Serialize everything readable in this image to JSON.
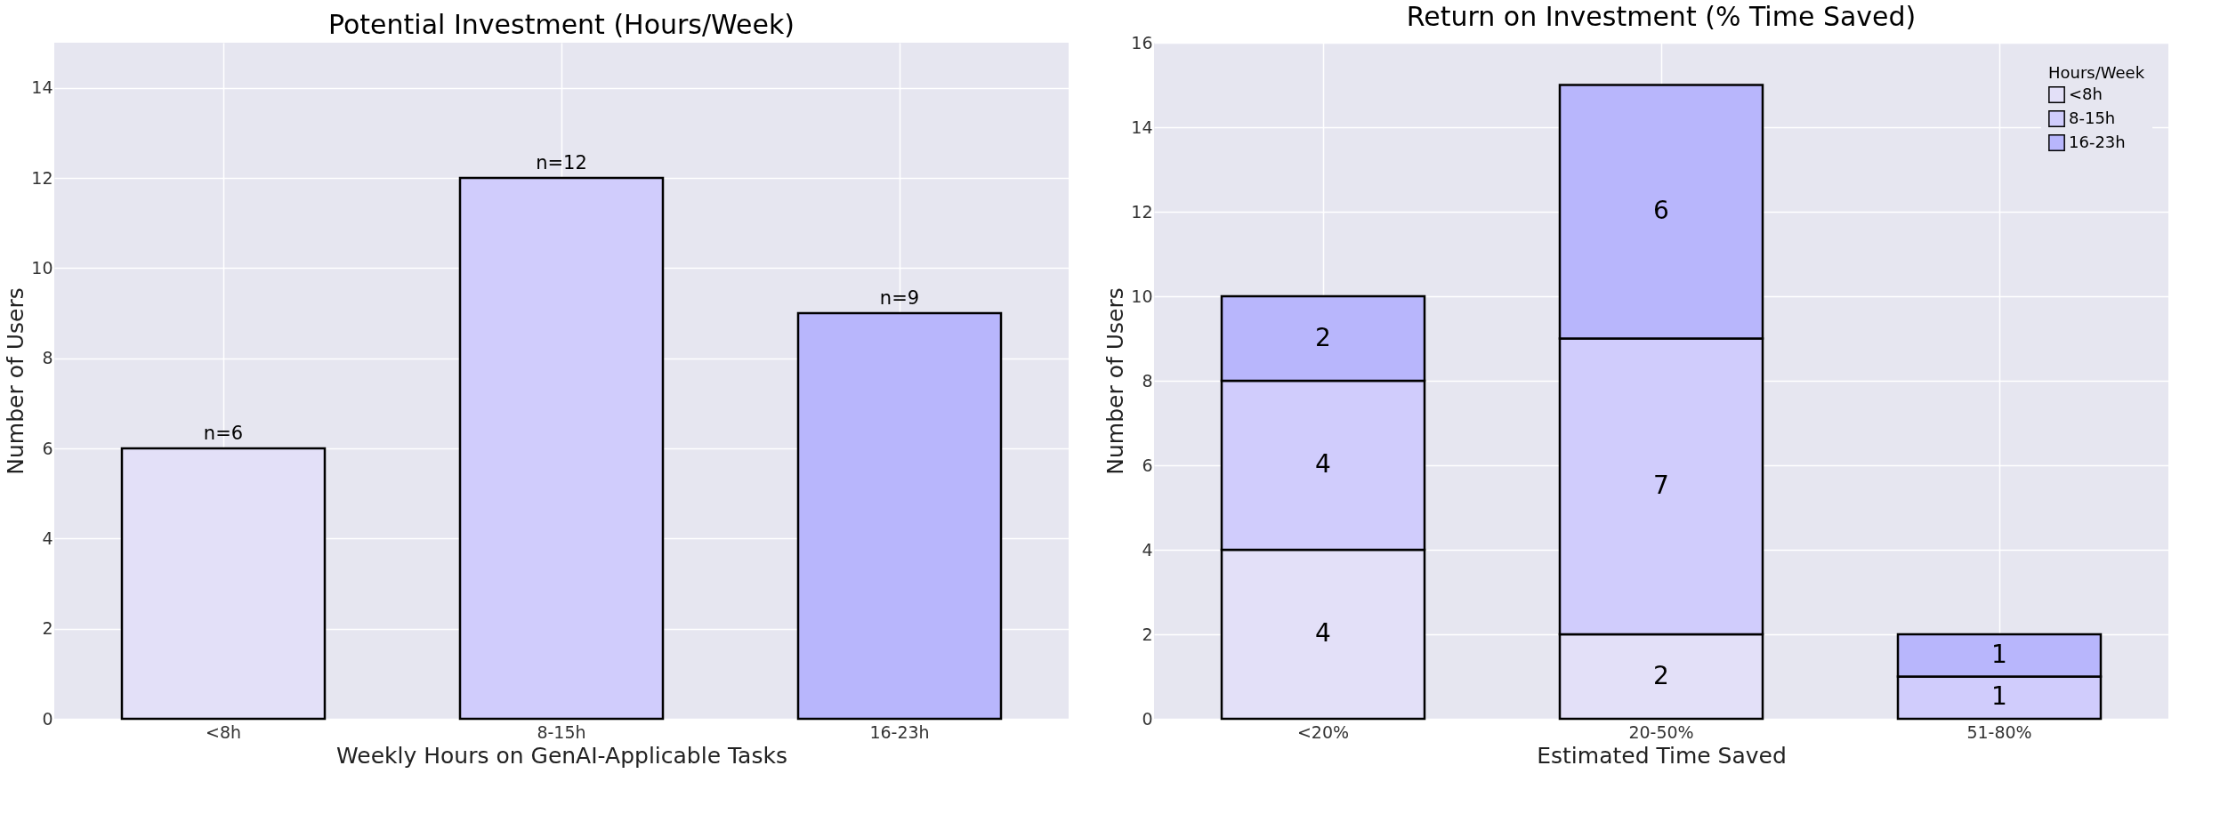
{
  "chart_data": [
    {
      "type": "bar",
      "title": "Potential Investment (Hours/Week)",
      "xlabel": "Weekly Hours on GenAI-Applicable Tasks",
      "ylabel": "Number of Users",
      "categories": [
        "<8h",
        "8-15h",
        "16-23h"
      ],
      "values": [
        6,
        12,
        9
      ],
      "colors": [
        "#e3e0f8",
        "#d0ccfc",
        "#b8b6fc"
      ],
      "value_labels": [
        "n=6",
        "n=12",
        "n=9"
      ],
      "ylim": [
        0,
        15
      ],
      "yticks": [
        0,
        2,
        4,
        6,
        8,
        10,
        12,
        14
      ],
      "grid": true
    },
    {
      "type": "bar",
      "title": "Return on Investment (% Time Saved)",
      "xlabel": "Estimated Time Saved",
      "ylabel": "Number of Users",
      "legend_title": "Hours/Week",
      "categories": [
        "<20%",
        "20-50%",
        "51-80%"
      ],
      "stacked": true,
      "series": [
        {
          "name": "<8h",
          "color": "#e3e0f8",
          "values": [
            4,
            2,
            null
          ]
        },
        {
          "name": "8-15h",
          "color": "#d0ccfc",
          "values": [
            4,
            7,
            1
          ]
        },
        {
          "name": "16-23h",
          "color": "#b8b6fc",
          "values": [
            2,
            6,
            1
          ]
        }
      ],
      "data_labels": true,
      "ylim": [
        0,
        16
      ],
      "yticks": [
        0,
        2,
        4,
        6,
        8,
        10,
        12,
        14,
        16
      ],
      "grid": true,
      "legend": "top right"
    }
  ]
}
